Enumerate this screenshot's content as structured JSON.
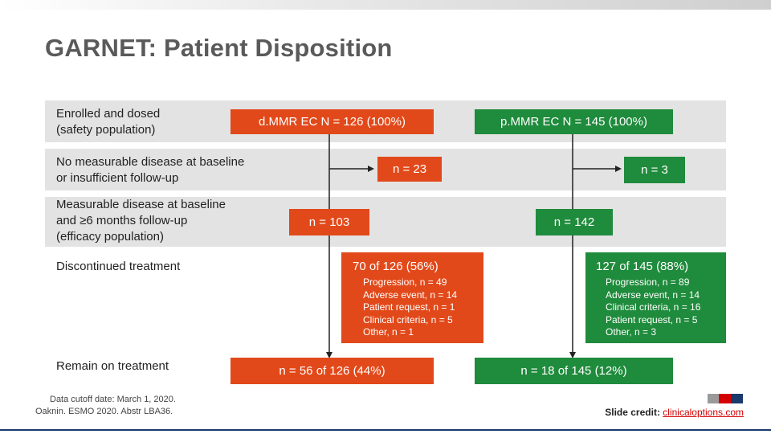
{
  "title": "GARNET: Patient Disposition",
  "rows": {
    "enrolled": "Enrolled and dosed\n(safety population)",
    "no_measurable": "No measurable disease at baseline\nor insufficient follow-up",
    "measurable": "Measurable disease at baseline\nand ≥6 months follow-up\n(efficacy population)",
    "discontinued": "Discontinued treatment",
    "remain": "Remain on treatment"
  },
  "dmmr": {
    "header": "d.MMR EC N = 126 (100%)",
    "excluded": "n = 23",
    "efficacy": "n = 103",
    "discontinued_total": "70 of 126 (56%)",
    "discontinued_reasons": "Progression, n = 49\nAdverse event, n = 14\nPatient request, n = 1\nClinical criteria, n = 5\nOther, n = 1",
    "remain": "n = 56 of 126 (44%)"
  },
  "pmmr": {
    "header": "p.MMR EC N = 145 (100%)",
    "excluded": "n = 3",
    "efficacy": "n = 142",
    "discontinued_total": "127 of 145 (88%)",
    "discontinued_reasons": "Progression, n = 89\nAdverse event, n = 14\nClinical criteria, n = 16\nPatient request, n = 5\nOther, n = 3",
    "remain": "n = 18 of 145 (12%)"
  },
  "footnote": {
    "cutoff": "Data cutoff date: March 1, 2020.",
    "source": "Oaknin. ESMO 2020. Abstr LBA36."
  },
  "credit": {
    "label": "Slide credit:",
    "link": "clinicaloptions.com"
  },
  "colors": {
    "dmmr": "#e2491a",
    "pmmr": "#1f8b3c",
    "band": "#e3e3e3",
    "logo": [
      "#9a9a9a",
      "#d40000",
      "#1a3a6e"
    ]
  }
}
